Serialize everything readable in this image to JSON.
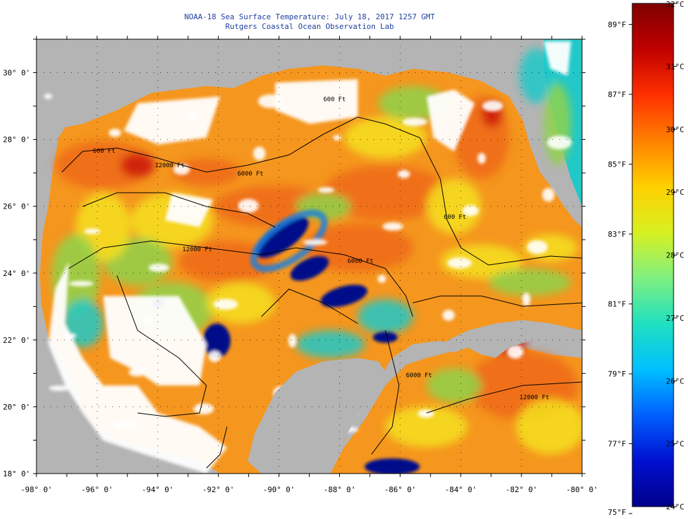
{
  "title": {
    "line1": "NOAA-18 Sea Surface Temperature:  July 18, 2017 1257 GMT",
    "line2": "Rutgers Coastal Ocean Observation Lab"
  },
  "map": {
    "lon_range": [
      -98,
      -80
    ],
    "lat_range": [
      18,
      31
    ],
    "lon_ticks": [
      {
        "value": -98,
        "label": "-98° 0'"
      },
      {
        "value": -96,
        "label": "-96° 0'"
      },
      {
        "value": -94,
        "label": "-94° 0'"
      },
      {
        "value": -92,
        "label": "-92° 0'"
      },
      {
        "value": -90,
        "label": "-90° 0'"
      },
      {
        "value": -88,
        "label": "-88° 0'"
      },
      {
        "value": -86,
        "label": "-86° 0'"
      },
      {
        "value": -84,
        "label": "-84° 0'"
      },
      {
        "value": -82,
        "label": "-82° 0'"
      },
      {
        "value": -80,
        "label": "-80° 0'"
      }
    ],
    "lat_ticks": [
      {
        "value": 18,
        "label": "18° 0'"
      },
      {
        "value": 20,
        "label": "20° 0'"
      },
      {
        "value": 22,
        "label": "22° 0'"
      },
      {
        "value": 24,
        "label": "24° 0'"
      },
      {
        "value": 26,
        "label": "26° 0'"
      },
      {
        "value": 28,
        "label": "28° 0'"
      },
      {
        "value": 30,
        "label": "30° 0'"
      }
    ],
    "contour_labels": [
      "600 Ft",
      "600 Ft",
      "6000 Ft",
      "12000 Ft",
      "12000 Ft",
      "6000 Ft",
      "600 Ft",
      "12000 Ft",
      "6000 Ft"
    ],
    "colors": {
      "land": "#b4b4b4",
      "cloud": "#ffffff",
      "deep_blue": "#00108a",
      "cool": "#1a7fe0",
      "cyan": "#22c8c8",
      "green": "#8fd24a",
      "yellow": "#f5e11e",
      "orange": "#f5961e",
      "orange_red": "#ee6a1a",
      "red": "#cc1a10"
    }
  },
  "colorbar": {
    "celsius_range": [
      24,
      32
    ],
    "celsius_ticks": [
      {
        "value": 32,
        "label": "32°C"
      },
      {
        "value": 31,
        "label": "31°C"
      },
      {
        "value": 30,
        "label": "30°C"
      },
      {
        "value": 29,
        "label": "29°C"
      },
      {
        "value": 28,
        "label": "28°C"
      },
      {
        "value": 27,
        "label": "27°C"
      },
      {
        "value": 26,
        "label": "26°C"
      },
      {
        "value": 25,
        "label": "25°C"
      },
      {
        "value": 24,
        "label": "24°C"
      }
    ],
    "fahrenheit_ticks": [
      {
        "value": 89,
        "label": "89°F"
      },
      {
        "value": 87,
        "label": "87°F"
      },
      {
        "value": 85,
        "label": "85°F"
      },
      {
        "value": 83,
        "label": "83°F"
      },
      {
        "value": 81,
        "label": "81°F"
      },
      {
        "value": 79,
        "label": "79°F"
      },
      {
        "value": 77,
        "label": "77°F"
      },
      {
        "value": 75,
        "label": "75°F"
      }
    ],
    "stops": [
      "#00008a",
      "#0010d0",
      "#0060ff",
      "#00c0ff",
      "#20e0c0",
      "#80f080",
      "#d8f020",
      "#ffd000",
      "#ff8000",
      "#ff3000",
      "#c00000",
      "#800000"
    ]
  }
}
